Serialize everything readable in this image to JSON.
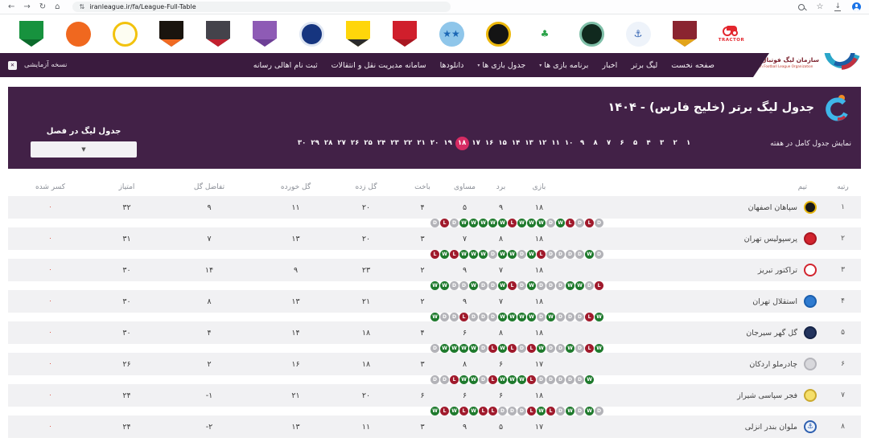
{
  "browser": {
    "url": "iranleague.ir/fa/League-Full-Table"
  },
  "icons": {
    "back": "←",
    "forward": "→",
    "reload": "↻",
    "home": "⌂",
    "tune": "⇅",
    "bookmark": "☆",
    "download": "↓",
    "caret": "▾",
    "select_caret": "▼",
    "close": "✕"
  },
  "colors": {
    "nav_purple": "#3a1b3e",
    "panel_purple": "#422147",
    "week_selected": "#d62b63",
    "win": "#1f7a2d",
    "loss": "#a01a2c",
    "draw": "#b3b3b8",
    "deducted_red": "#dd4b39",
    "tractor_red": "#e3262d"
  },
  "topnav": {
    "beta_label": "نسخه آزمایشی",
    "items": [
      {
        "label": "صفحه نخست",
        "dropdown": false
      },
      {
        "label": "لیگ برتر",
        "dropdown": false
      },
      {
        "label": "اخبار",
        "dropdown": false
      },
      {
        "label": "برنامه بازی ها",
        "dropdown": true
      },
      {
        "label": "جدول بازی ها",
        "dropdown": true
      },
      {
        "label": "دانلودها",
        "dropdown": false
      },
      {
        "label": "سامانه مدیریت نقل و انتقالات",
        "dropdown": false
      },
      {
        "label": "ثبت نام اهالی رسانه",
        "dropdown": false
      }
    ],
    "org_name": "سازمان لیگ فوتبال ایران",
    "org_subtitle": "Iran Football League Organization"
  },
  "logo_strip": {
    "clubs": [
      {
        "name": "kheybar",
        "kind": "shield",
        "c1": "#17923e",
        "c2": "#0c6b2c"
      },
      {
        "name": "mes-rafsanjan",
        "kind": "circle",
        "c1": "#f0681f",
        "c2": "#c94e10"
      },
      {
        "name": "chadormelo",
        "kind": "ring",
        "c1": "#fdfdf2",
        "c2": "#f2c20d"
      },
      {
        "name": "club-orange-black",
        "kind": "shield",
        "c1": "#1a140e",
        "c2": "#f06a22"
      },
      {
        "name": "club-gray-red",
        "kind": "shield",
        "c1": "#44434b",
        "c2": "#c2202e"
      },
      {
        "name": "havadar",
        "kind": "shield",
        "c1": "#8e5bb5",
        "c2": "#6d3f96"
      },
      {
        "name": "club-navy",
        "kind": "ring",
        "c1": "#16357f",
        "c2": "#dfe6f2"
      },
      {
        "name": "fajr-sepasi-strip",
        "kind": "shield",
        "c1": "#ffd60a",
        "c2": "#2b2b2b"
      },
      {
        "name": "persepolis-strip",
        "kind": "shield",
        "c1": "#d01f2c",
        "c2": "#a91722"
      },
      {
        "name": "esteghlal-strip",
        "kind": "circle",
        "c1": "#8fc6ea",
        "c2": "#1b66b4",
        "mark": "★★"
      },
      {
        "name": "sepahan-strip",
        "kind": "ring",
        "c1": "#141414",
        "c2": "#edb80c"
      },
      {
        "name": "zob-ahan",
        "kind": "circle",
        "c1": "#ffffff",
        "c2": "#2ca34a",
        "mark": "♣"
      },
      {
        "name": "shams-azar",
        "kind": "ring",
        "c1": "#10291e",
        "c2": "#7fbfa8"
      },
      {
        "name": "malavan-strip",
        "kind": "circle",
        "c1": "#eef3fa",
        "c2": "#2d5fb0",
        "mark": "⚓"
      },
      {
        "name": "foolad",
        "kind": "shield",
        "c1": "#8a2430",
        "c2": "#e2a41a"
      },
      {
        "name": "tractor-strip",
        "kind": "tractor",
        "text": "TRACTOR"
      }
    ]
  },
  "panel": {
    "title": "جدول لیگ برتر (خلیج فارس) - ۱۴۰۴",
    "week_label": "نمایش جدول کامل در هفته",
    "season_label": "جدول لیگ در فصل",
    "selected_week": "۱۸",
    "weeks": [
      "۱",
      "۲",
      "۳",
      "۴",
      "۵",
      "۶",
      "۷",
      "۸",
      "۹",
      "۱۰",
      "۱۱",
      "۱۲",
      "۱۳",
      "۱۴",
      "۱۵",
      "۱۶",
      "۱۷",
      "۱۸",
      "۱۹",
      "۲۰",
      "۲۱",
      "۲۲",
      "۲۳",
      "۲۴",
      "۲۵",
      "۲۶",
      "۲۷",
      "۲۸",
      "۲۹",
      "۳۰"
    ]
  },
  "table": {
    "headers": [
      "رتبه",
      "تیم",
      "بازی",
      "برد",
      "مساوی",
      "باخت",
      "گل زده",
      "گل خورده",
      "تفاضل گل",
      "امتیاز",
      "کسر شده"
    ],
    "rows": [
      {
        "rank": "۱",
        "team": "سپاهان اصفهان",
        "played": "۱۸",
        "won": "۹",
        "drawn": "۵",
        "lost": "۴",
        "gf": "۲۰",
        "ga": "۱۱",
        "gd": "۹",
        "pts": "۳۲",
        "deducted": "۰",
        "logo": {
          "name": "sepahan",
          "c1": "#191919",
          "ring": "#e7b50c"
        },
        "form": [
          "D",
          "L",
          "D",
          "W",
          "W",
          "W",
          "W",
          "W",
          "L",
          "W",
          "W",
          "W",
          "D",
          "W",
          "L",
          "D",
          "L",
          "D"
        ]
      },
      {
        "rank": "۲",
        "team": "پرسپولیس تهران",
        "played": "۱۸",
        "won": "۸",
        "drawn": "۷",
        "lost": "۳",
        "gf": "۲۰",
        "ga": "۱۳",
        "gd": "۷",
        "pts": "۳۱",
        "deducted": "۰",
        "logo": {
          "name": "persepolis",
          "c1": "#d2242e",
          "ring": "#a91722"
        },
        "form": [
          "L",
          "W",
          "L",
          "W",
          "W",
          "W",
          "D",
          "W",
          "W",
          "D",
          "W",
          "L",
          "D",
          "D",
          "D",
          "D",
          "W",
          "D"
        ]
      },
      {
        "rank": "۳",
        "team": "تراکتور تبریز",
        "played": "۱۸",
        "won": "۷",
        "drawn": "۹",
        "lost": "۲",
        "gf": "۲۳",
        "ga": "۹",
        "gd": "۱۴",
        "pts": "۳۰",
        "deducted": "۰",
        "logo": {
          "name": "tractor",
          "c1": "#ffffff",
          "ring": "#d2242e"
        },
        "form": [
          "W",
          "W",
          "D",
          "D",
          "W",
          "D",
          "D",
          "W",
          "L",
          "D",
          "W",
          "D",
          "D",
          "D",
          "W",
          "W",
          "D",
          "L"
        ]
      },
      {
        "rank": "۴",
        "team": "استقلال تهران",
        "played": "۱۸",
        "won": "۷",
        "drawn": "۹",
        "lost": "۲",
        "gf": "۲۱",
        "ga": "۱۳",
        "gd": "۸",
        "pts": "۳۰",
        "deducted": "۰",
        "logo": {
          "name": "esteghlal",
          "c1": "#2f7bd0",
          "ring": "#1b5fae"
        },
        "form": [
          "W",
          "D",
          "D",
          "L",
          "D",
          "D",
          "D",
          "W",
          "W",
          "W",
          "W",
          "D",
          "W",
          "D",
          "D",
          "D",
          "L",
          "W"
        ]
      },
      {
        "rank": "۵",
        "team": "گل گهر سیرجان",
        "played": "۱۸",
        "won": "۸",
        "drawn": "۶",
        "lost": "۴",
        "gf": "۱۸",
        "ga": "۱۴",
        "gd": "۴",
        "pts": "۳۰",
        "deducted": "۰",
        "logo": {
          "name": "gol-gohar",
          "c1": "#23345e",
          "ring": "#162447"
        },
        "form": [
          "D",
          "W",
          "W",
          "W",
          "W",
          "D",
          "L",
          "W",
          "L",
          "D",
          "L",
          "W",
          "D",
          "D",
          "W",
          "D",
          "L",
          "W"
        ]
      },
      {
        "rank": "۶",
        "team": "چادرملو اردکان",
        "played": "۱۷",
        "won": "۶",
        "drawn": "۸",
        "lost": "۳",
        "gf": "۱۸",
        "ga": "۱۶",
        "gd": "۲",
        "pts": "۲۶",
        "deducted": "۰",
        "logo": {
          "name": "chadormelo",
          "c1": "#d8d8dc",
          "ring": "#b5b5bb"
        },
        "form": [
          "D",
          "D",
          "L",
          "W",
          "W",
          "D",
          "L",
          "W",
          "W",
          "W",
          "L",
          "D",
          "D",
          "D",
          "D",
          "D",
          "W"
        ]
      },
      {
        "rank": "۷",
        "team": "فجر سپاسی شیراز",
        "played": "۱۸",
        "won": "۶",
        "drawn": "۶",
        "lost": "۶",
        "gf": "۲۰",
        "ga": "۲۱",
        "gd": "-۱",
        "pts": "۲۴",
        "deducted": "۰",
        "logo": {
          "name": "fajr-sepasi",
          "c1": "#f5df6a",
          "ring": "#caa92e"
        },
        "form": [
          "W",
          "L",
          "W",
          "L",
          "W",
          "L",
          "L",
          "D",
          "D",
          "D",
          "L",
          "W",
          "L",
          "D",
          "W",
          "D",
          "W",
          "D"
        ]
      },
      {
        "rank": "۸",
        "team": "ملوان بندر انزلی",
        "played": "۱۷",
        "won": "۵",
        "drawn": "۹",
        "lost": "۳",
        "gf": "۱۱",
        "ga": "۱۳",
        "gd": "-۲",
        "pts": "۲۴",
        "deducted": "۰",
        "logo": {
          "name": "malavan",
          "c1": "#eef3fa",
          "ring": "#2d5fb0",
          "mark": "⚓",
          "markColor": "#2d5fb0"
        },
        "form": []
      }
    ]
  }
}
